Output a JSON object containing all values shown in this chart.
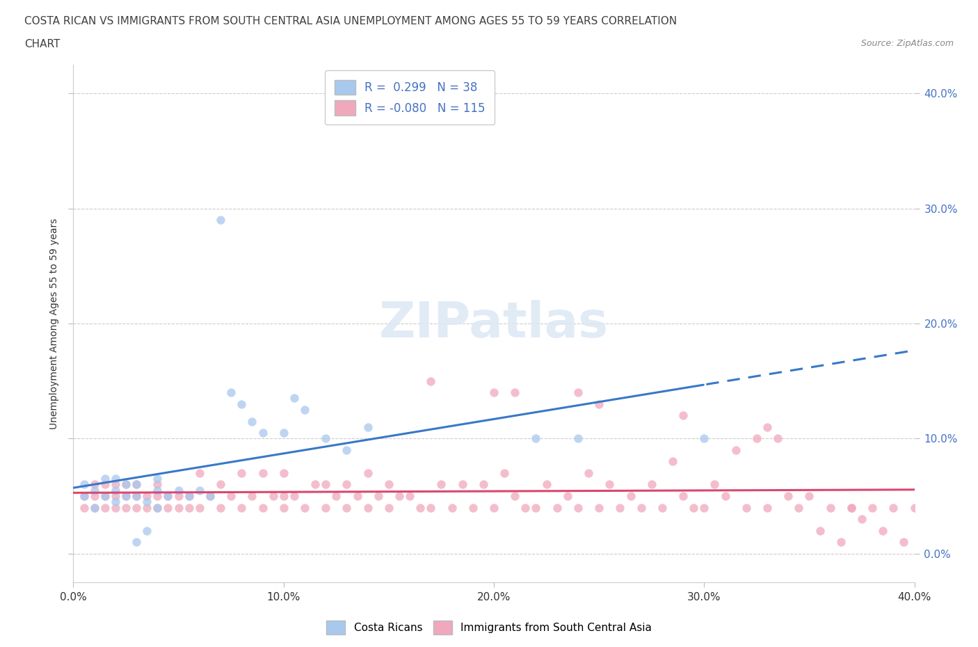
{
  "title_line1": "COSTA RICAN VS IMMIGRANTS FROM SOUTH CENTRAL ASIA UNEMPLOYMENT AMONG AGES 55 TO 59 YEARS CORRELATION",
  "title_line2": "CHART",
  "source": "Source: ZipAtlas.com",
  "ylabel": "Unemployment Among Ages 55 to 59 years",
  "xmin": 0.0,
  "xmax": 0.4,
  "ymin": -0.025,
  "ymax": 0.425,
  "yticks": [
    0.0,
    0.1,
    0.2,
    0.3,
    0.4
  ],
  "xticks": [
    0.0,
    0.1,
    0.2,
    0.3,
    0.4
  ],
  "blue_R": 0.299,
  "blue_N": 38,
  "pink_R": -0.08,
  "pink_N": 115,
  "blue_color": "#A8C8EE",
  "pink_color": "#F0A8BC",
  "trend_blue_color": "#3878C8",
  "trend_pink_color": "#D84870",
  "blue_scatter_x": [
    0.005,
    0.005,
    0.01,
    0.01,
    0.015,
    0.015,
    0.02,
    0.02,
    0.02,
    0.025,
    0.025,
    0.03,
    0.03,
    0.03,
    0.035,
    0.035,
    0.04,
    0.04,
    0.04,
    0.045,
    0.05,
    0.055,
    0.06,
    0.065,
    0.07,
    0.075,
    0.08,
    0.085,
    0.09,
    0.1,
    0.105,
    0.11,
    0.12,
    0.13,
    0.14,
    0.22,
    0.24,
    0.3
  ],
  "blue_scatter_y": [
    0.05,
    0.06,
    0.04,
    0.055,
    0.05,
    0.065,
    0.045,
    0.055,
    0.065,
    0.05,
    0.06,
    0.05,
    0.06,
    0.01,
    0.02,
    0.045,
    0.04,
    0.055,
    0.065,
    0.05,
    0.055,
    0.05,
    0.055,
    0.05,
    0.29,
    0.14,
    0.13,
    0.115,
    0.105,
    0.105,
    0.135,
    0.125,
    0.1,
    0.09,
    0.11,
    0.1,
    0.1,
    0.1
  ],
  "pink_scatter_x": [
    0.005,
    0.005,
    0.01,
    0.01,
    0.01,
    0.015,
    0.015,
    0.015,
    0.02,
    0.02,
    0.02,
    0.025,
    0.025,
    0.025,
    0.03,
    0.03,
    0.03,
    0.035,
    0.035,
    0.04,
    0.04,
    0.04,
    0.045,
    0.045,
    0.05,
    0.05,
    0.055,
    0.055,
    0.06,
    0.06,
    0.065,
    0.07,
    0.07,
    0.075,
    0.08,
    0.08,
    0.085,
    0.09,
    0.09,
    0.095,
    0.1,
    0.1,
    0.1,
    0.105,
    0.11,
    0.115,
    0.12,
    0.12,
    0.125,
    0.13,
    0.13,
    0.135,
    0.14,
    0.14,
    0.145,
    0.15,
    0.15,
    0.155,
    0.16,
    0.165,
    0.17,
    0.175,
    0.18,
    0.185,
    0.19,
    0.195,
    0.2,
    0.205,
    0.21,
    0.215,
    0.22,
    0.225,
    0.23,
    0.235,
    0.24,
    0.245,
    0.25,
    0.255,
    0.26,
    0.265,
    0.27,
    0.275,
    0.28,
    0.285,
    0.29,
    0.295,
    0.3,
    0.305,
    0.31,
    0.315,
    0.32,
    0.325,
    0.33,
    0.335,
    0.34,
    0.345,
    0.35,
    0.355,
    0.36,
    0.365,
    0.37,
    0.375,
    0.38,
    0.385,
    0.39,
    0.395,
    0.4,
    0.17,
    0.21,
    0.25,
    0.29,
    0.33,
    0.37,
    0.2,
    0.24
  ],
  "pink_scatter_y": [
    0.04,
    0.05,
    0.04,
    0.05,
    0.06,
    0.04,
    0.05,
    0.06,
    0.04,
    0.05,
    0.06,
    0.04,
    0.05,
    0.06,
    0.04,
    0.05,
    0.06,
    0.04,
    0.05,
    0.04,
    0.05,
    0.06,
    0.04,
    0.05,
    0.04,
    0.05,
    0.04,
    0.05,
    0.04,
    0.07,
    0.05,
    0.04,
    0.06,
    0.05,
    0.04,
    0.07,
    0.05,
    0.04,
    0.07,
    0.05,
    0.04,
    0.05,
    0.07,
    0.05,
    0.04,
    0.06,
    0.04,
    0.06,
    0.05,
    0.04,
    0.06,
    0.05,
    0.04,
    0.07,
    0.05,
    0.04,
    0.06,
    0.05,
    0.05,
    0.04,
    0.04,
    0.06,
    0.04,
    0.06,
    0.04,
    0.06,
    0.04,
    0.07,
    0.05,
    0.04,
    0.04,
    0.06,
    0.04,
    0.05,
    0.04,
    0.07,
    0.04,
    0.06,
    0.04,
    0.05,
    0.04,
    0.06,
    0.04,
    0.08,
    0.05,
    0.04,
    0.04,
    0.06,
    0.05,
    0.09,
    0.04,
    0.1,
    0.04,
    0.1,
    0.05,
    0.04,
    0.05,
    0.02,
    0.04,
    0.01,
    0.04,
    0.03,
    0.04,
    0.02,
    0.04,
    0.01,
    0.04,
    0.15,
    0.14,
    0.13,
    0.12,
    0.11,
    0.04,
    0.14,
    0.14
  ]
}
